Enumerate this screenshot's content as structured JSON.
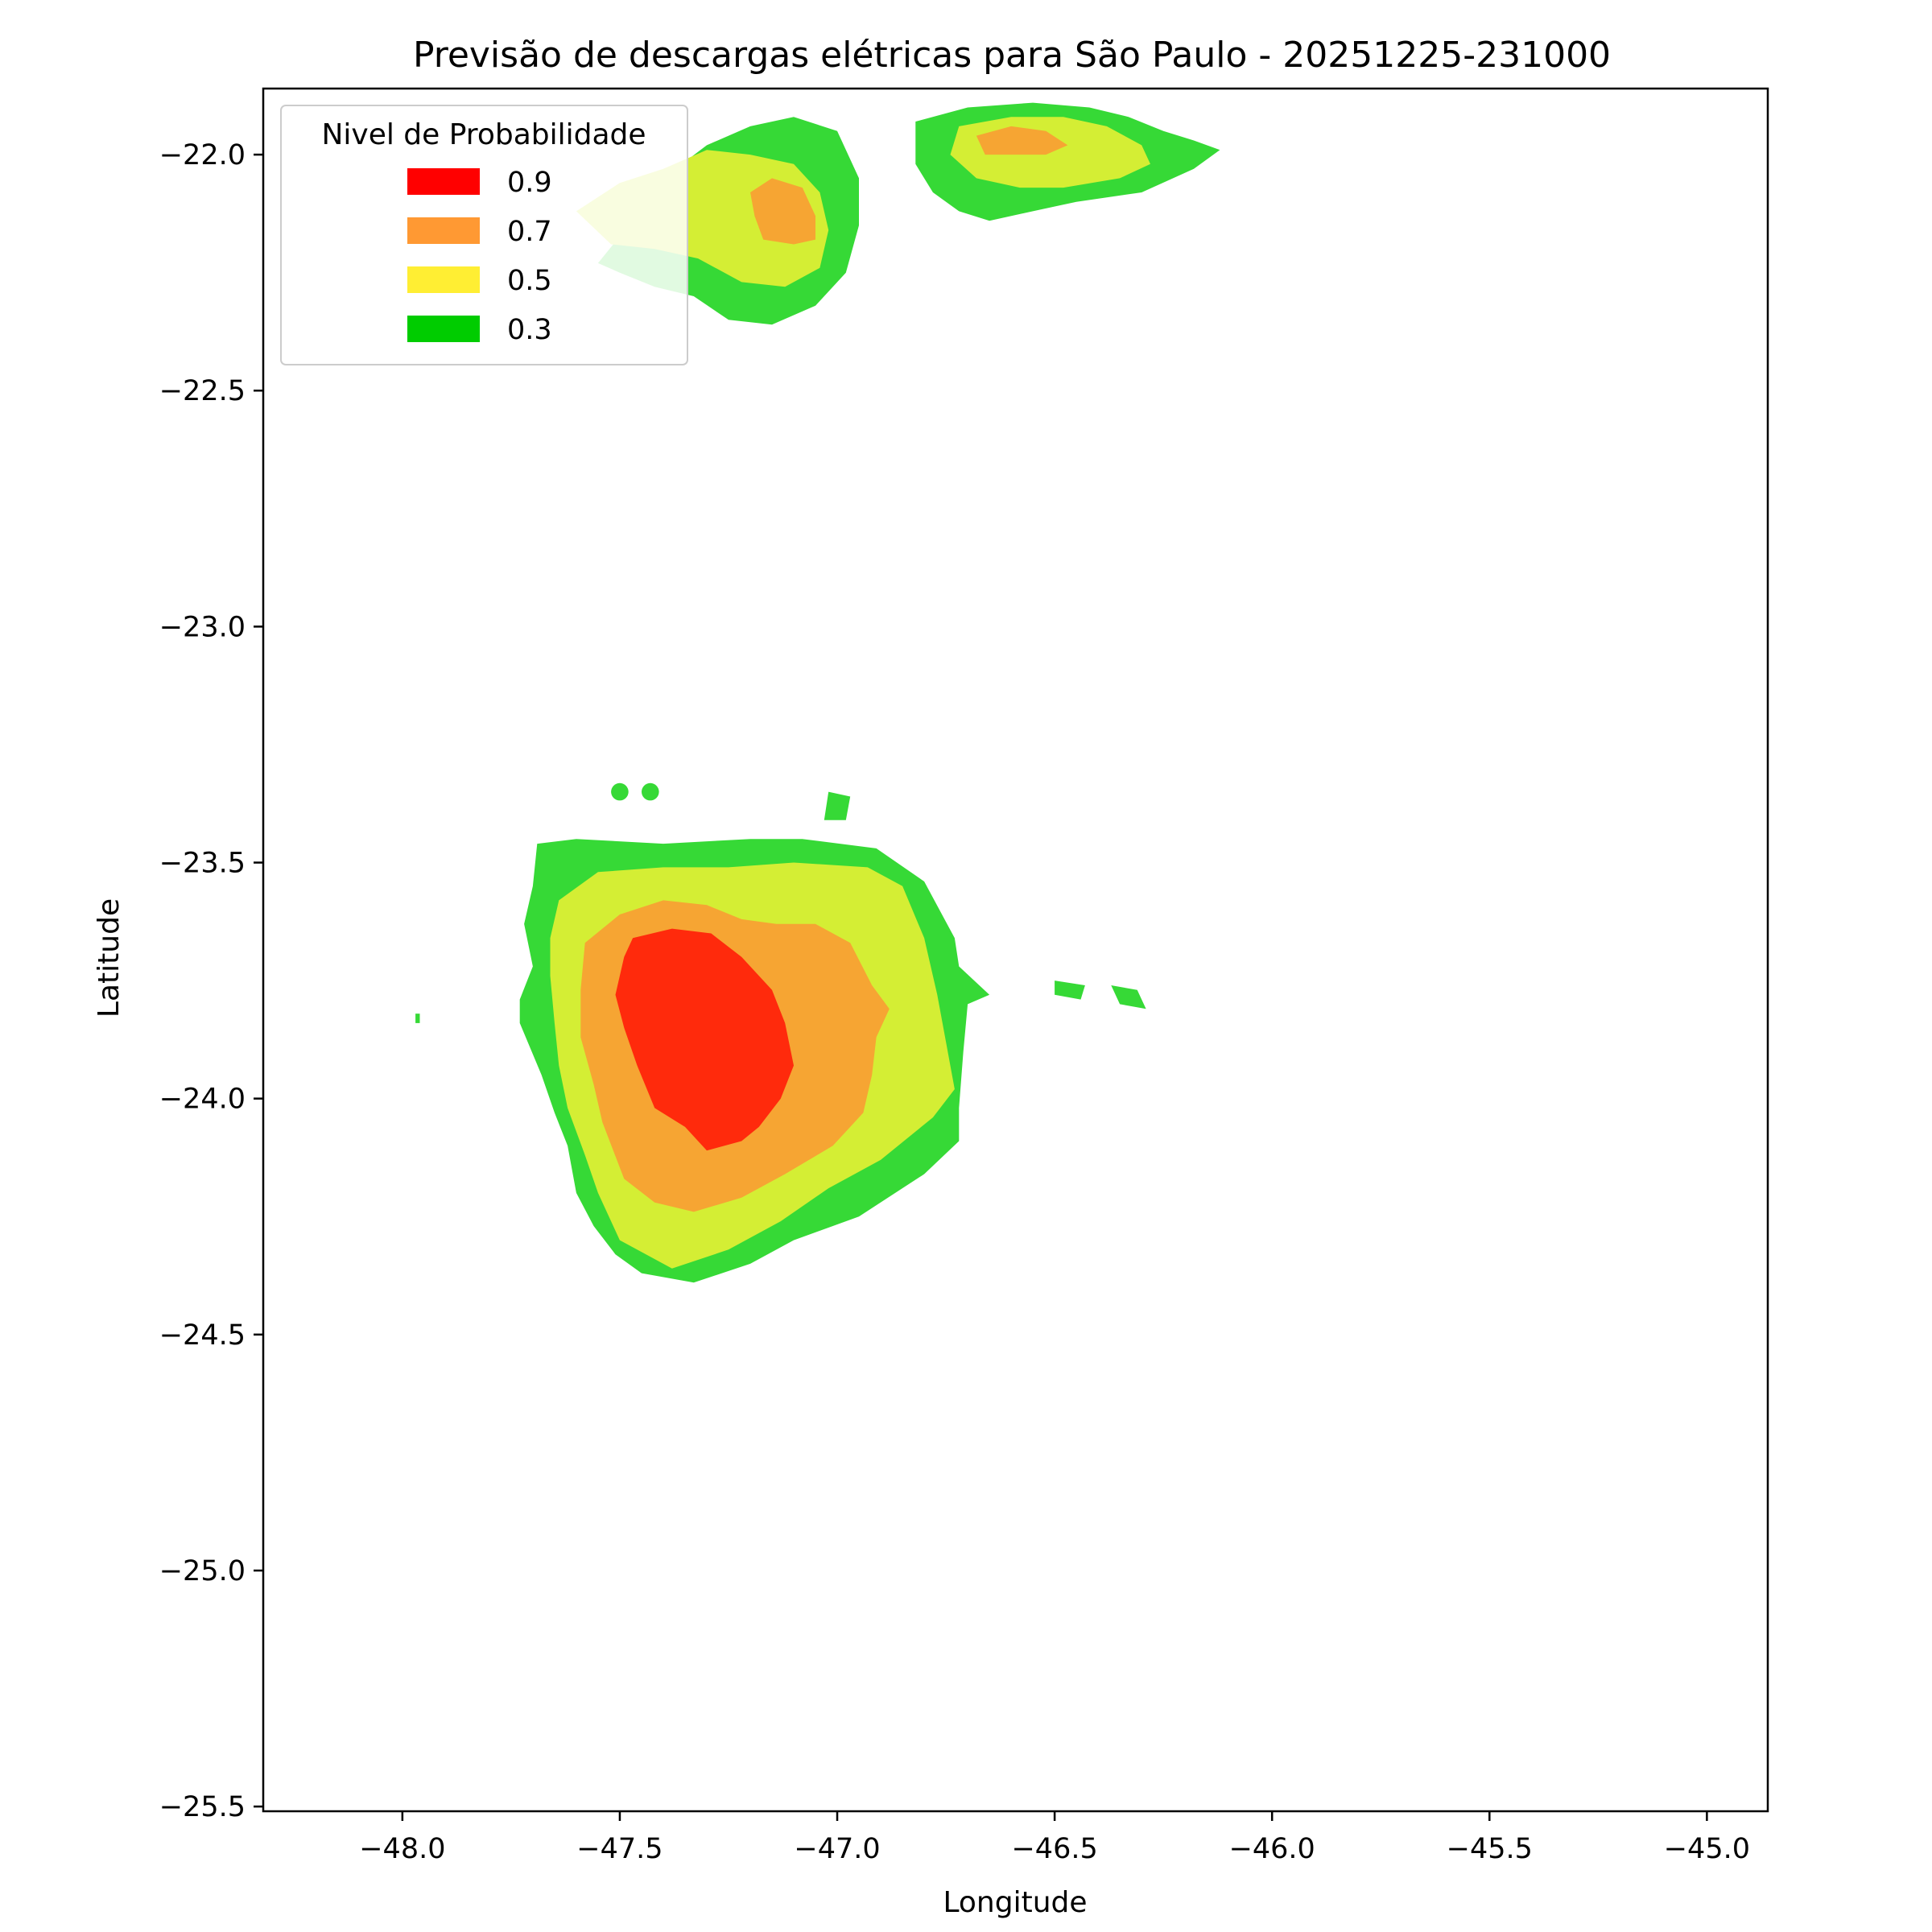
{
  "chart_data": {
    "type": "heatmap",
    "title": "Previsão de descargas elétricas para São Paulo - 20251225-231000",
    "xlabel": "Longitude",
    "ylabel": "Latitude",
    "xlim": [
      -48.32,
      -44.86
    ],
    "ylim": [
      -25.51,
      -21.86
    ],
    "xticks": [
      -48.0,
      -47.5,
      -47.0,
      -46.5,
      -46.0,
      -45.5,
      -45.0
    ],
    "yticks": [
      -22.0,
      -22.5,
      -23.0,
      -23.5,
      -24.0,
      -24.5,
      -25.0,
      -25.5
    ],
    "xtick_labels": [
      "−48.0",
      "−47.5",
      "−47.0",
      "−46.5",
      "−46.0",
      "−45.5",
      "−45.0"
    ],
    "ytick_labels": [
      "−22.0",
      "−22.5",
      "−23.0",
      "−23.5",
      "−24.0",
      "−24.5",
      "−25.0",
      "−25.5"
    ],
    "grid": false,
    "legend": {
      "title": "Nivel de Probabilidade",
      "placement": "top-left",
      "entries": [
        {
          "label": "0.9",
          "color": "#ff0000"
        },
        {
          "label": "0.7",
          "color": "#ff9933"
        },
        {
          "label": "0.5",
          "color": "#ffee33"
        },
        {
          "label": "0.3",
          "color": "#00cc00"
        }
      ]
    },
    "level_colors": {
      "0.3": "#36d936",
      "0.5": "#d4ee34",
      "0.7": "#f6a533",
      "0.9": "#ff2a0c"
    },
    "regions": [
      {
        "name": "south-cell-0.3",
        "level": "0.3",
        "points": [
          [
            -47.69,
            -23.46
          ],
          [
            -47.6,
            -23.45
          ],
          [
            -47.4,
            -23.46
          ],
          [
            -47.2,
            -23.45
          ],
          [
            -47.08,
            -23.45
          ],
          [
            -46.91,
            -23.47
          ],
          [
            -46.8,
            -23.54
          ],
          [
            -46.73,
            -23.66
          ],
          [
            -46.72,
            -23.72
          ],
          [
            -46.65,
            -23.78
          ],
          [
            -46.7,
            -23.8
          ],
          [
            -46.71,
            -23.9
          ],
          [
            -46.72,
            -24.02
          ],
          [
            -46.72,
            -24.09
          ],
          [
            -46.8,
            -24.16
          ],
          [
            -46.95,
            -24.25
          ],
          [
            -47.1,
            -24.3
          ],
          [
            -47.2,
            -24.35
          ],
          [
            -47.33,
            -24.39
          ],
          [
            -47.45,
            -24.37
          ],
          [
            -47.51,
            -24.33
          ],
          [
            -47.56,
            -24.27
          ],
          [
            -47.6,
            -24.2
          ],
          [
            -47.62,
            -24.1
          ],
          [
            -47.65,
            -24.03
          ],
          [
            -47.68,
            -23.95
          ],
          [
            -47.73,
            -23.84
          ],
          [
            -47.73,
            -23.79
          ],
          [
            -47.7,
            -23.72
          ],
          [
            -47.72,
            -23.63
          ],
          [
            -47.7,
            -23.55
          ]
        ]
      },
      {
        "name": "south-cell-0.5",
        "level": "0.5",
        "points": [
          [
            -47.64,
            -23.58
          ],
          [
            -47.55,
            -23.52
          ],
          [
            -47.4,
            -23.51
          ],
          [
            -47.25,
            -23.51
          ],
          [
            -47.1,
            -23.5
          ],
          [
            -46.93,
            -23.51
          ],
          [
            -46.85,
            -23.55
          ],
          [
            -46.8,
            -23.66
          ],
          [
            -46.77,
            -23.78
          ],
          [
            -46.75,
            -23.88
          ],
          [
            -46.73,
            -23.98
          ],
          [
            -46.78,
            -24.04
          ],
          [
            -46.9,
            -24.13
          ],
          [
            -47.02,
            -24.19
          ],
          [
            -47.13,
            -24.26
          ],
          [
            -47.25,
            -24.32
          ],
          [
            -47.38,
            -24.36
          ],
          [
            -47.5,
            -24.3
          ],
          [
            -47.55,
            -24.2
          ],
          [
            -47.58,
            -24.12
          ],
          [
            -47.62,
            -24.02
          ],
          [
            -47.64,
            -23.93
          ],
          [
            -47.65,
            -23.84
          ],
          [
            -47.66,
            -23.74
          ],
          [
            -47.66,
            -23.66
          ]
        ]
      },
      {
        "name": "south-cell-0.7",
        "level": "0.7",
        "points": [
          [
            -47.58,
            -23.67
          ],
          [
            -47.5,
            -23.61
          ],
          [
            -47.4,
            -23.58
          ],
          [
            -47.3,
            -23.59
          ],
          [
            -47.22,
            -23.62
          ],
          [
            -47.14,
            -23.63
          ],
          [
            -47.05,
            -23.63
          ],
          [
            -46.97,
            -23.67
          ],
          [
            -46.92,
            -23.76
          ],
          [
            -46.88,
            -23.81
          ],
          [
            -46.91,
            -23.87
          ],
          [
            -46.92,
            -23.95
          ],
          [
            -46.94,
            -24.03
          ],
          [
            -47.01,
            -24.1
          ],
          [
            -47.12,
            -24.16
          ],
          [
            -47.22,
            -24.21
          ],
          [
            -47.33,
            -24.24
          ],
          [
            -47.42,
            -24.22
          ],
          [
            -47.49,
            -24.17
          ],
          [
            -47.54,
            -24.05
          ],
          [
            -47.56,
            -23.97
          ],
          [
            -47.59,
            -23.87
          ],
          [
            -47.59,
            -23.77
          ]
        ]
      },
      {
        "name": "south-cell-0.9",
        "level": "0.9",
        "points": [
          [
            -47.47,
            -23.66
          ],
          [
            -47.38,
            -23.64
          ],
          [
            -47.29,
            -23.65
          ],
          [
            -47.22,
            -23.7
          ],
          [
            -47.15,
            -23.77
          ],
          [
            -47.12,
            -23.84
          ],
          [
            -47.1,
            -23.93
          ],
          [
            -47.13,
            -24.0
          ],
          [
            -47.18,
            -24.06
          ],
          [
            -47.22,
            -24.09
          ],
          [
            -47.3,
            -24.11
          ],
          [
            -47.35,
            -24.06
          ],
          [
            -47.42,
            -24.02
          ],
          [
            -47.46,
            -23.93
          ],
          [
            -47.49,
            -23.85
          ],
          [
            -47.51,
            -23.78
          ],
          [
            -47.49,
            -23.7
          ]
        ]
      },
      {
        "name": "nw-cell-0.3",
        "level": "0.3",
        "points": [
          [
            -47.4,
            -22.05
          ],
          [
            -47.3,
            -21.98
          ],
          [
            -47.2,
            -21.94
          ],
          [
            -47.1,
            -21.92
          ],
          [
            -47.0,
            -21.95
          ],
          [
            -46.95,
            -22.05
          ],
          [
            -46.95,
            -22.15
          ],
          [
            -46.98,
            -22.25
          ],
          [
            -47.05,
            -22.32
          ],
          [
            -47.15,
            -22.36
          ],
          [
            -47.25,
            -22.35
          ],
          [
            -47.33,
            -22.3
          ],
          [
            -47.42,
            -22.28
          ],
          [
            -47.5,
            -22.25
          ],
          [
            -47.55,
            -22.23
          ],
          [
            -47.48,
            -22.15
          ]
        ]
      },
      {
        "name": "nw-cell-0.5",
        "level": "0.5",
        "points": [
          [
            -47.6,
            -22.12
          ],
          [
            -47.5,
            -22.06
          ],
          [
            -47.4,
            -22.03
          ],
          [
            -47.3,
            -21.99
          ],
          [
            -47.2,
            -22.0
          ],
          [
            -47.1,
            -22.02
          ],
          [
            -47.04,
            -22.08
          ],
          [
            -47.02,
            -22.16
          ],
          [
            -47.04,
            -22.24
          ],
          [
            -47.12,
            -22.28
          ],
          [
            -47.22,
            -22.27
          ],
          [
            -47.32,
            -22.22
          ],
          [
            -47.42,
            -22.2
          ],
          [
            -47.52,
            -22.19
          ]
        ]
      },
      {
        "name": "nw-cell-0.7",
        "level": "0.7",
        "points": [
          [
            -47.2,
            -22.08
          ],
          [
            -47.15,
            -22.05
          ],
          [
            -47.08,
            -22.07
          ],
          [
            -47.05,
            -22.13
          ],
          [
            -47.05,
            -22.18
          ],
          [
            -47.1,
            -22.19
          ],
          [
            -47.17,
            -22.18
          ],
          [
            -47.19,
            -22.13
          ]
        ]
      },
      {
        "name": "ne-cell-0.3",
        "level": "0.3",
        "points": [
          [
            -46.82,
            -21.93
          ],
          [
            -46.7,
            -21.9
          ],
          [
            -46.55,
            -21.89
          ],
          [
            -46.42,
            -21.9
          ],
          [
            -46.33,
            -21.92
          ],
          [
            -46.25,
            -21.95
          ],
          [
            -46.18,
            -21.97
          ],
          [
            -46.12,
            -21.99
          ],
          [
            -46.18,
            -22.03
          ],
          [
            -46.3,
            -22.08
          ],
          [
            -46.45,
            -22.1
          ],
          [
            -46.55,
            -22.12
          ],
          [
            -46.65,
            -22.14
          ],
          [
            -46.72,
            -22.12
          ],
          [
            -46.78,
            -22.08
          ],
          [
            -46.82,
            -22.02
          ]
        ]
      },
      {
        "name": "ne-cell-0.5",
        "level": "0.5",
        "points": [
          [
            -46.72,
            -21.94
          ],
          [
            -46.6,
            -21.92
          ],
          [
            -46.48,
            -21.92
          ],
          [
            -46.38,
            -21.94
          ],
          [
            -46.3,
            -21.98
          ],
          [
            -46.28,
            -22.02
          ],
          [
            -46.35,
            -22.05
          ],
          [
            -46.48,
            -22.07
          ],
          [
            -46.58,
            -22.07
          ],
          [
            -46.68,
            -22.05
          ],
          [
            -46.74,
            -22.0
          ]
        ]
      },
      {
        "name": "ne-cell-0.7",
        "level": "0.7",
        "points": [
          [
            -46.68,
            -21.96
          ],
          [
            -46.6,
            -21.94
          ],
          [
            -46.52,
            -21.95
          ],
          [
            -46.47,
            -21.98
          ],
          [
            -46.52,
            -22.0
          ],
          [
            -46.6,
            -22.0
          ],
          [
            -46.66,
            -22.0
          ]
        ]
      },
      {
        "name": "islet-east-1",
        "level": "0.3",
        "points": [
          [
            -46.5,
            -23.75
          ],
          [
            -46.43,
            -23.76
          ],
          [
            -46.44,
            -23.79
          ],
          [
            -46.5,
            -23.78
          ]
        ]
      },
      {
        "name": "islet-east-2",
        "level": "0.3",
        "points": [
          [
            -46.37,
            -23.76
          ],
          [
            -46.31,
            -23.77
          ],
          [
            -46.29,
            -23.81
          ],
          [
            -46.35,
            -23.8
          ]
        ]
      },
      {
        "name": "islet-north-1",
        "level": "0.3",
        "points": [
          [
            -47.02,
            -23.35
          ],
          [
            -46.97,
            -23.36
          ],
          [
            -46.98,
            -23.41
          ],
          [
            -47.03,
            -23.41
          ]
        ]
      },
      {
        "name": "islet-west-1",
        "level": "0.3",
        "points": [
          [
            -47.97,
            -23.82
          ],
          [
            -47.96,
            -23.82
          ],
          [
            -47.96,
            -23.84
          ],
          [
            -47.97,
            -23.84
          ]
        ]
      }
    ],
    "spots": [
      {
        "name": "spot-1",
        "level": "0.3",
        "lon": -47.5,
        "lat": -23.35,
        "r": 0.02
      },
      {
        "name": "spot-2",
        "level": "0.3",
        "lon": -47.43,
        "lat": -23.35,
        "r": 0.02
      }
    ]
  }
}
